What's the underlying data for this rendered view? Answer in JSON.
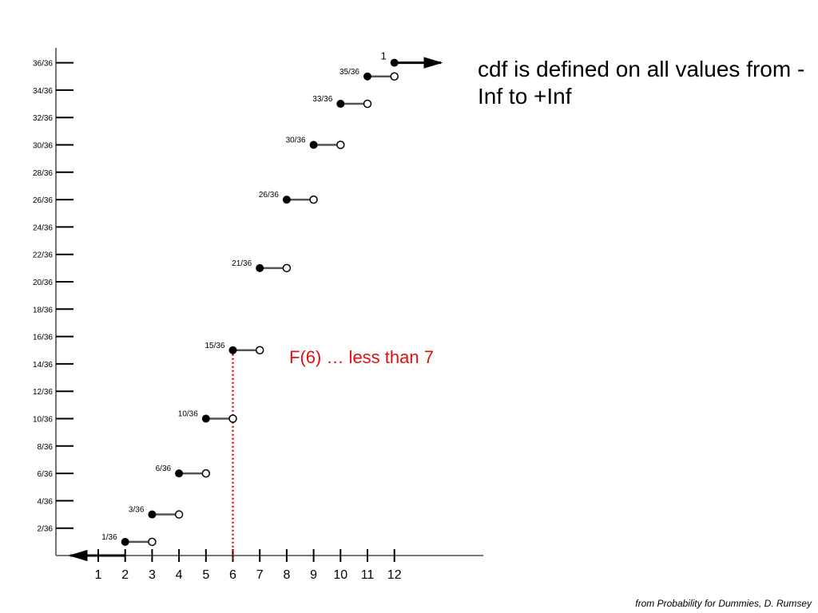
{
  "headline": "cdf is defined on all values from -Inf to +Inf",
  "annotation": "F(6) … less than 7",
  "credit": "from Probability for Dummies, D. Rumsey",
  "colors": {
    "step_line": "#000000",
    "marker_line": "#e01010",
    "axis": "#000000"
  },
  "chart_data": {
    "type": "line",
    "subtype": "step-cdf",
    "x_ticks": [
      "1",
      "2",
      "3",
      "4",
      "5",
      "6",
      "7",
      "8",
      "9",
      "10",
      "11",
      "12"
    ],
    "y_ticks": [
      "2/36",
      "4/36",
      "6/36",
      "8/36",
      "10/36",
      "12/36",
      "14/36",
      "16/36",
      "18/36",
      "20/36",
      "22/36",
      "24/36",
      "26/36",
      "28/36",
      "30/36",
      "32/36",
      "34/36",
      "36/36"
    ],
    "xlim": [
      -0.3,
      15.5
    ],
    "ylim": [
      0,
      36
    ],
    "steps": [
      {
        "x_start": 2,
        "x_end": 3,
        "value": 1,
        "label": "1/36"
      },
      {
        "x_start": 3,
        "x_end": 4,
        "value": 3,
        "label": "3/36"
      },
      {
        "x_start": 4,
        "x_end": 5,
        "value": 6,
        "label": "6/36"
      },
      {
        "x_start": 5,
        "x_end": 6,
        "value": 10,
        "label": "10/36"
      },
      {
        "x_start": 6,
        "x_end": 7,
        "value": 15,
        "label": "15/36"
      },
      {
        "x_start": 7,
        "x_end": 8,
        "value": 21,
        "label": "21/36"
      },
      {
        "x_start": 8,
        "x_end": 9,
        "value": 26,
        "label": "26/36"
      },
      {
        "x_start": 9,
        "x_end": 10,
        "value": 30,
        "label": "30/36"
      },
      {
        "x_start": 10,
        "x_end": 11,
        "value": 33,
        "label": "33/36"
      },
      {
        "x_start": 11,
        "x_end": 12,
        "value": 35,
        "label": "35/36"
      }
    ],
    "final_step": {
      "x_start": 12,
      "value": 36,
      "label": "1"
    },
    "left_ray": {
      "x_start": -0.3,
      "x_end": 2,
      "value": 0
    },
    "marker": {
      "x": 6,
      "from_value": 0,
      "to_value": 15
    }
  }
}
